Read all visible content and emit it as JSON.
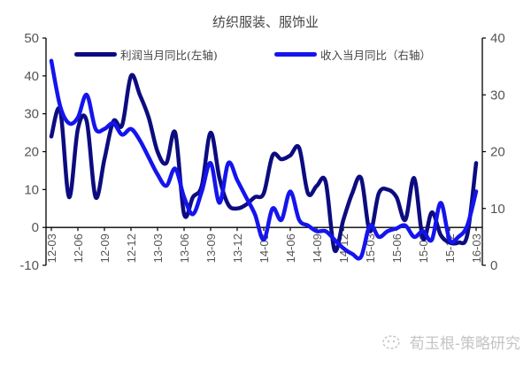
{
  "chart_data": {
    "type": "line",
    "title": "纺织服装、服饰业",
    "xlabel": "",
    "ylabel_left": "",
    "ylabel_right": "",
    "ylim_left": [
      -10,
      50
    ],
    "yticks_left": [
      -10,
      0,
      10,
      20,
      30,
      40,
      50
    ],
    "ylim_right": [
      0,
      40
    ],
    "yticks_right": [
      0,
      10,
      20,
      30,
      40
    ],
    "grid": false,
    "legend_position": "top",
    "x_tick_labels": [
      "12-03",
      "12-06",
      "12-09",
      "12-12",
      "13-03",
      "13-06",
      "13-09",
      "13-12",
      "14-03",
      "14-06",
      "14-09",
      "14-12",
      "15-03",
      "15-06",
      "15-09",
      "15-12",
      "16-03"
    ],
    "x": [
      "12-03",
      "12-04",
      "12-05",
      "12-06",
      "12-07",
      "12-08",
      "12-09",
      "12-10",
      "12-11",
      "12-12",
      "13-01",
      "13-02",
      "13-03",
      "13-04",
      "13-05",
      "13-06",
      "13-07",
      "13-08",
      "13-09",
      "13-10",
      "13-11",
      "13-12",
      "14-01",
      "14-02",
      "14-03",
      "14-04",
      "14-05",
      "14-06",
      "14-07",
      "14-08",
      "14-09",
      "14-10",
      "14-11",
      "14-12",
      "15-01",
      "15-02",
      "15-03",
      "15-04",
      "15-05",
      "15-06",
      "15-07",
      "15-08",
      "15-09",
      "15-10",
      "15-11",
      "15-12",
      "16-01",
      "16-02",
      "16-03"
    ],
    "series": [
      {
        "name": "利润当月同比(左轴)",
        "axis": "left",
        "color": "#0c0c80",
        "values": [
          24,
          31,
          8,
          26,
          28,
          8,
          18,
          28,
          27,
          40,
          35,
          29,
          20,
          17,
          25,
          3.5,
          8,
          11,
          25,
          13,
          6,
          5,
          6,
          8,
          9,
          19,
          18,
          19,
          21,
          9,
          11,
          12,
          -6,
          2,
          9,
          13,
          -1,
          9,
          10,
          8,
          2,
          13,
          -3,
          4,
          -2,
          -4,
          -4,
          -2,
          17
        ]
      },
      {
        "name": "收入当月同比（右轴）",
        "axis": "right",
        "color": "#1414ee",
        "values": [
          36,
          28,
          25,
          26,
          30,
          24,
          24,
          25,
          23,
          24,
          22,
          19,
          16,
          14,
          17,
          12,
          9,
          13,
          18,
          11,
          18,
          15,
          12,
          9,
          4.5,
          10,
          8,
          13,
          8,
          7,
          6,
          6,
          4.5,
          3,
          2,
          1.5,
          7,
          5,
          6,
          6.5,
          7,
          5,
          6,
          4.5,
          11,
          4.5,
          5,
          7,
          13
        ]
      }
    ]
  },
  "legend": {
    "profit_label": "利润当月同比(左轴)",
    "revenue_label": "收入当月同比（右轴）"
  },
  "watermark": {
    "text": "荀玉根-策略研究"
  }
}
